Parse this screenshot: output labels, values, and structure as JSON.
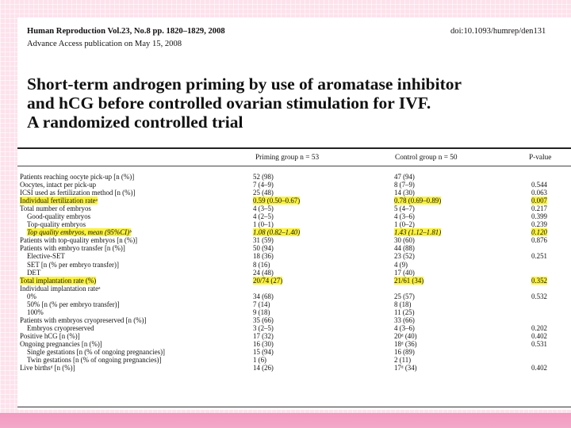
{
  "header": {
    "journal": "Human Reproduction Vol.23, No.8 pp. 1820–1829, 2008",
    "doi": "doi:10.1093/humrep/den131",
    "advance_access": "Advance Access publication on May 15, 2008"
  },
  "title_lines": [
    "Short-term androgen priming by use of aromatase inhibitor",
    "and hCG before controlled ovarian stimulation for IVF.",
    "A randomized controlled trial"
  ],
  "table": {
    "columns": [
      "Priming group n = 53",
      "Control group n = 50",
      "P-value"
    ],
    "rows": [
      {
        "label": "Patients reaching oocyte pick-up [n (%)]",
        "priming": "52 (98)",
        "control": "47 (94)",
        "p": "",
        "indent": false,
        "italic": false,
        "highlight": false
      },
      {
        "label": "Oocytes, intact per pick-up",
        "priming": "7 (4–9)",
        "control": "8 (7–9)",
        "p": "0.544",
        "indent": false,
        "italic": false,
        "highlight": false
      },
      {
        "label": "ICSI used as fertilization method [n (%)]",
        "priming": "25 (48)",
        "control": "14 (30)",
        "p": "0.063",
        "indent": false,
        "italic": false,
        "highlight": false
      },
      {
        "label": "Individual fertilization rateᵃ",
        "priming": "0.59 (0.50–0.67)",
        "control": "0.78 (0.69–0.89)",
        "p": "0.007",
        "indent": false,
        "italic": false,
        "highlight": true
      },
      {
        "label": "Total number of embryos",
        "priming": "4 (3–5)",
        "control": "5 (4–7)",
        "p": "0.217",
        "indent": false,
        "italic": false,
        "highlight": false
      },
      {
        "label": "Good-quality embryos",
        "priming": "4 (2–5)",
        "control": "4 (3–6)",
        "p": "0.399",
        "indent": true,
        "italic": false,
        "highlight": false
      },
      {
        "label": "Top-quality embryos",
        "priming": "1 (0–1)",
        "control": "1 (0–2)",
        "p": "0.239",
        "indent": true,
        "italic": false,
        "highlight": false
      },
      {
        "label": "Top quality embryos, mean (95%CI)ᵇ",
        "priming": "1.08 (0.82–1.40)",
        "control": "1.43 (1.12–1.81)",
        "p": "0.120",
        "indent": true,
        "italic": true,
        "highlight": true
      },
      {
        "label": "Patients with top-quality embryos [n (%)]",
        "priming": "31 (59)",
        "control": "30 (60)",
        "p": "0.876",
        "indent": false,
        "italic": false,
        "highlight": false
      },
      {
        "label": "Patients with embryo transfer [n (%)]",
        "priming": "50 (94)",
        "control": "44 (88)",
        "p": "",
        "indent": false,
        "italic": false,
        "highlight": false
      },
      {
        "label": "Elective-SET",
        "priming": "18 (36)",
        "control": "23 (52)",
        "p": "0.251",
        "indent": true,
        "italic": false,
        "highlight": false
      },
      {
        "label": "SET [n (% per embryo transfer)]",
        "priming": "8 (16)",
        "control": "4 (9)",
        "p": "",
        "indent": true,
        "italic": false,
        "highlight": false
      },
      {
        "label": "DET",
        "priming": "24 (48)",
        "control": "17 (40)",
        "p": "",
        "indent": true,
        "italic": false,
        "highlight": false
      },
      {
        "label": "Total implantation rate (%)",
        "priming": "20/74 (27)",
        "control": "21/61 (34)",
        "p": "0.352",
        "indent": false,
        "italic": false,
        "highlight": true
      },
      {
        "label": "Individual implantation rateᵃ",
        "priming": "",
        "control": "",
        "p": "",
        "indent": false,
        "italic": false,
        "highlight": false
      },
      {
        "label": "0%",
        "priming": "34 (68)",
        "control": "25 (57)",
        "p": "0.532",
        "indent": true,
        "italic": false,
        "highlight": false
      },
      {
        "label": "50% [n (% per embryo transfer)]",
        "priming": "7 (14)",
        "control": "8 (18)",
        "p": "",
        "indent": true,
        "italic": false,
        "highlight": false
      },
      {
        "label": "100%",
        "priming": "9 (18)",
        "control": "11 (25)",
        "p": "",
        "indent": true,
        "italic": false,
        "highlight": false
      },
      {
        "label": "Patients with embryos cryopreserved [n (%)]",
        "priming": "35 (66)",
        "control": "33 (66)",
        "p": "",
        "indent": false,
        "italic": false,
        "highlight": false
      },
      {
        "label": "Embryos cryopreserved",
        "priming": "3 (2–5)",
        "control": "4 (3–6)",
        "p": "0.202",
        "indent": true,
        "italic": false,
        "highlight": false
      },
      {
        "label": "Positive hCG [n (%)]",
        "priming": "17 (32)",
        "control": "20ᵈ (40)",
        "p": "0.402",
        "indent": false,
        "italic": false,
        "highlight": false
      },
      {
        "label": "Ongoing pregnancies [n (%)]",
        "priming": "16 (30)",
        "control": "18ᵈ (36)",
        "p": "0.531",
        "indent": false,
        "italic": false,
        "highlight": false
      },
      {
        "label": "Single gestations [n (% of ongoing pregnancies)]",
        "priming": "15 (94)",
        "control": "16 (89)",
        "p": "",
        "indent": true,
        "italic": false,
        "highlight": false
      },
      {
        "label": "Twin gestations [n (% of ongoing pregnancies)]",
        "priming": "1 (6)",
        "control": "2 (11)",
        "p": "",
        "indent": true,
        "italic": false,
        "highlight": false
      },
      {
        "label": "Live birthsᵈ [n (%)]",
        "priming": "14 (26)",
        "control": "17ᵈ (34)",
        "p": "0.402",
        "indent": false,
        "italic": false,
        "highlight": false
      }
    ]
  }
}
